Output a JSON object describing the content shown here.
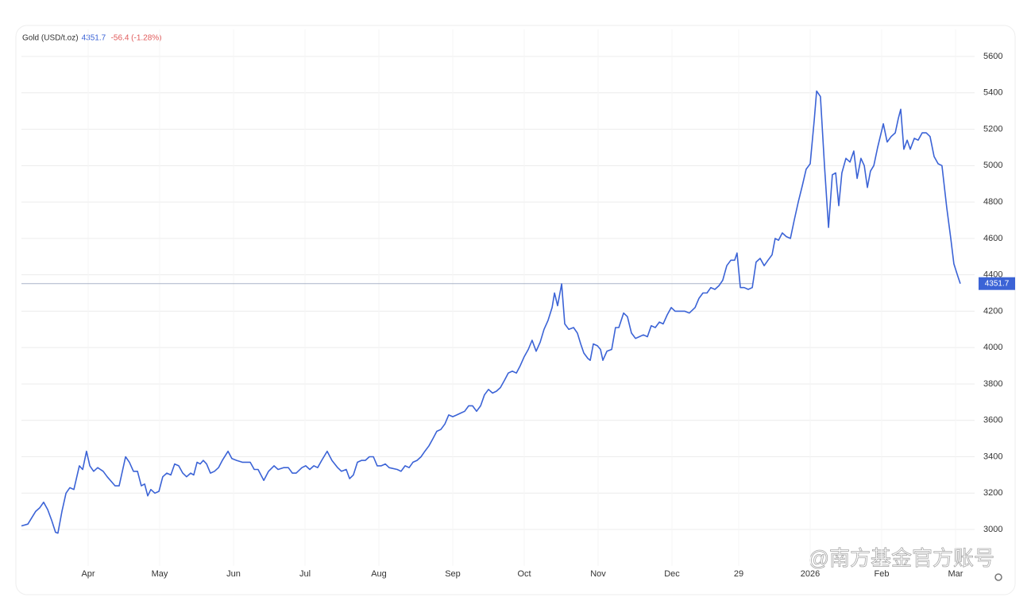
{
  "chart_data": {
    "type": "line",
    "title": "Gold (USD/t.oz)",
    "price": 4351.7,
    "change": "-56.4 (-1.28%)",
    "watermark": "@南方基金官方账号",
    "xlim": [
      0,
      400
    ],
    "xticks": [
      {
        "value": 28,
        "label": "Apr"
      },
      {
        "value": 58,
        "label": "May"
      },
      {
        "value": 89,
        "label": "Jun"
      },
      {
        "value": 119,
        "label": "Jul"
      },
      {
        "value": 150,
        "label": "Aug"
      },
      {
        "value": 181,
        "label": "Sep"
      },
      {
        "value": 211,
        "label": "Oct"
      },
      {
        "value": 242,
        "label": "Nov"
      },
      {
        "value": 273,
        "label": "Dec"
      },
      {
        "value": 301,
        "label": "29"
      },
      {
        "value": 331,
        "label": "2026"
      },
      {
        "value": 361,
        "label": "Feb"
      },
      {
        "value": 392,
        "label": "Mar"
      }
    ],
    "ylim": [
      2800,
      5750
    ],
    "yticks": [
      3000,
      3200,
      3400,
      3600,
      3800,
      4000,
      4200,
      4400,
      4600,
      4800,
      5000,
      5200,
      5400,
      5600
    ],
    "grid": true,
    "series": [
      {
        "name": "Gold",
        "color": "#3b63d6",
        "x": [
          0,
          2.7,
          6,
          7.7,
          9.3,
          11,
          12.7,
          14.3,
          15.3,
          17,
          18.7,
          20.3,
          22,
          24.3,
          25.7,
          27.3,
          28.7,
          30.3,
          32,
          34.3,
          36,
          39.3,
          41,
          43.7,
          45.3,
          47,
          48.7,
          50.3,
          51.7,
          53,
          54.3,
          56,
          57.7,
          59.3,
          61,
          62.7,
          64.3,
          66,
          67.7,
          69.3,
          71,
          72.3,
          73.7,
          75,
          76.3,
          77.7,
          79.3,
          81,
          82.7,
          84.3,
          86.7,
          88.3,
          90.3,
          92.7,
          96,
          97.7,
          99.3,
          101.7,
          103.7,
          106,
          107.7,
          110,
          112,
          113.7,
          115.3,
          117.7,
          119.3,
          121,
          122.7,
          124.3,
          126,
          128.3,
          130.3,
          132.7,
          134.3,
          136.3,
          137.7,
          139.3,
          141,
          142.7,
          144.3,
          146,
          147.7,
          149.3,
          151,
          152.7,
          154.3,
          157.7,
          159.3,
          161,
          162.7,
          164.3,
          166,
          167.7,
          169.3,
          171,
          172.7,
          174.3,
          176,
          177.7,
          179.3,
          181,
          182.7,
          184.3,
          186,
          187.7,
          189.3,
          191,
          192.7,
          194.3,
          196,
          197.7,
          199.3,
          201,
          202.7,
          204.3,
          206,
          207.7,
          209.3,
          211,
          212.7,
          214.3,
          216,
          217.7,
          219.3,
          221,
          222.7,
          223.7,
          225,
          226.7,
          228,
          229.7,
          231.7,
          233.3,
          234.7,
          236,
          237.7,
          238.7,
          240,
          241.7,
          243,
          244,
          245.7,
          247.7,
          249.3,
          250.7,
          252.7,
          254.3,
          256,
          257.7,
          259.3,
          261,
          262.7,
          264.3,
          266,
          267.7,
          269.3,
          271,
          272.7,
          274.3,
          276,
          278.3,
          280.3,
          282.7,
          284.3,
          286,
          287.7,
          289.3,
          291,
          292.7,
          294.3,
          296,
          297.7,
          299.3,
          300.3,
          301.7,
          303.3,
          305,
          306.7,
          308.3,
          310,
          311.7,
          313.3,
          315,
          316.3,
          317.7,
          319.3,
          321,
          322.7,
          324.3,
          326,
          327.7,
          329.3,
          331,
          332.7,
          333.7,
          335.3,
          337,
          338.7,
          340.3,
          341.7,
          343,
          344.3,
          346,
          347.7,
          349.3,
          350.7,
          352.3,
          353.7,
          355,
          356.3,
          357.7,
          359.3,
          361.7,
          363.3,
          365,
          366.7,
          368,
          369,
          370.3,
          371.7,
          373,
          374.7,
          376.3,
          378,
          379.7,
          381.3,
          383,
          384.7,
          386.3,
          388.3,
          390,
          391.3,
          393,
          394
        ],
        "values": [
          3020,
          3030,
          3100,
          3120,
          3150,
          3110,
          3050,
          2985,
          2980,
          3100,
          3200,
          3230,
          3220,
          3350,
          3330,
          3430,
          3350,
          3320,
          3340,
          3320,
          3290,
          3240,
          3240,
          3400,
          3370,
          3320,
          3320,
          3240,
          3250,
          3185,
          3220,
          3200,
          3210,
          3290,
          3310,
          3300,
          3360,
          3350,
          3310,
          3290,
          3310,
          3300,
          3370,
          3360,
          3380,
          3360,
          3310,
          3320,
          3340,
          3380,
          3430,
          3390,
          3380,
          3370,
          3370,
          3330,
          3330,
          3270,
          3320,
          3350,
          3330,
          3340,
          3340,
          3310,
          3310,
          3340,
          3350,
          3330,
          3350,
          3340,
          3380,
          3430,
          3380,
          3340,
          3320,
          3330,
          3280,
          3300,
          3370,
          3380,
          3380,
          3400,
          3400,
          3350,
          3350,
          3360,
          3340,
          3330,
          3320,
          3350,
          3340,
          3370,
          3380,
          3400,
          3430,
          3460,
          3500,
          3540,
          3550,
          3580,
          3630,
          3620,
          3630,
          3640,
          3650,
          3680,
          3680,
          3650,
          3680,
          3740,
          3770,
          3750,
          3760,
          3780,
          3820,
          3860,
          3870,
          3860,
          3900,
          3950,
          3990,
          4040,
          3980,
          4030,
          4100,
          4150,
          4220,
          4300,
          4230,
          4350,
          4130,
          4100,
          4110,
          4080,
          4020,
          3970,
          3940,
          3930,
          4020,
          4010,
          3990,
          3930,
          3980,
          3990,
          4110,
          4110,
          4190,
          4170,
          4080,
          4050,
          4060,
          4070,
          4060,
          4120,
          4110,
          4140,
          4130,
          4180,
          4220,
          4200,
          4200,
          4200,
          4190,
          4220,
          4270,
          4300,
          4300,
          4330,
          4320,
          4340,
          4370,
          4450,
          4480,
          4480,
          4520,
          4330,
          4330,
          4320,
          4330,
          4470,
          4490,
          4450,
          4480,
          4510,
          4600,
          4590,
          4630,
          4610,
          4600,
          4700,
          4800,
          4890,
          4980,
          5010,
          5250,
          5410,
          5380,
          5000,
          4660,
          4950,
          4960,
          4780,
          4960,
          5040,
          5020,
          5080,
          4930,
          5040,
          5000,
          4880,
          4970,
          5000,
          5100,
          5230,
          5130,
          5160,
          5180,
          5260,
          5310,
          5090,
          5140,
          5090,
          5150,
          5140,
          5180,
          5180,
          5160,
          5050,
          5010,
          5000,
          4770,
          4600,
          4460,
          4390,
          4351.7
        ]
      }
    ]
  }
}
